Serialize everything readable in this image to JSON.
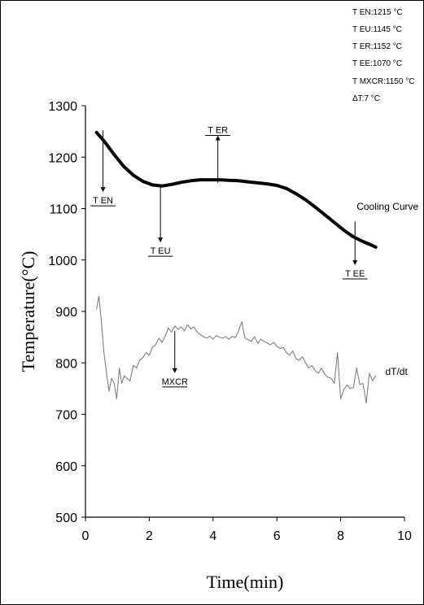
{
  "chart_data": {
    "type": "line",
    "xlabel": "Time(min)",
    "ylabel": "Temperature(°C)",
    "xlim": [
      0,
      10
    ],
    "ylim": [
      500,
      1300
    ],
    "x_ticks": [
      0,
      2,
      4,
      6,
      8,
      10
    ],
    "y_ticks": [
      500,
      600,
      700,
      800,
      900,
      1000,
      1100,
      1200,
      1300
    ],
    "grid": false,
    "series": [
      {
        "name": "Cooling Curve",
        "color": "#000000",
        "x": [
          0.35,
          0.6,
          0.9,
          1.2,
          1.5,
          1.8,
          2.1,
          2.4,
          2.7,
          3.0,
          3.3,
          3.6,
          3.9,
          4.2,
          4.5,
          4.8,
          5.1,
          5.4,
          5.7,
          6.0,
          6.3,
          6.6,
          6.9,
          7.2,
          7.5,
          7.8,
          8.1,
          8.4,
          8.7,
          9.0,
          9.1
        ],
        "y": [
          1248,
          1230,
          1205,
          1182,
          1165,
          1153,
          1146,
          1144,
          1147,
          1151,
          1154,
          1156,
          1156,
          1156,
          1155,
          1154,
          1152,
          1150,
          1148,
          1145,
          1139,
          1129,
          1117,
          1103,
          1088,
          1073,
          1058,
          1045,
          1036,
          1028,
          1025
        ]
      },
      {
        "name": "dT/dt",
        "color": "#808080",
        "x": [
          0.35,
          0.42,
          0.5,
          0.58,
          0.66,
          0.74,
          0.82,
          0.9,
          0.98,
          1.06,
          1.14,
          1.22,
          1.3,
          1.4,
          1.5,
          1.6,
          1.7,
          1.8,
          1.9,
          2.0,
          2.1,
          2.2,
          2.3,
          2.4,
          2.5,
          2.6,
          2.7,
          2.8,
          2.9,
          3.0,
          3.1,
          3.2,
          3.3,
          3.4,
          3.5,
          3.6,
          3.7,
          3.8,
          3.9,
          4.0,
          4.1,
          4.2,
          4.3,
          4.4,
          4.5,
          4.6,
          4.7,
          4.8,
          4.9,
          5.0,
          5.1,
          5.2,
          5.3,
          5.4,
          5.5,
          5.6,
          5.7,
          5.8,
          5.9,
          6.0,
          6.1,
          6.2,
          6.3,
          6.4,
          6.5,
          6.6,
          6.7,
          6.8,
          6.9,
          7.0,
          7.1,
          7.2,
          7.3,
          7.4,
          7.5,
          7.6,
          7.7,
          7.8,
          7.9,
          8.0,
          8.1,
          8.2,
          8.3,
          8.4,
          8.5,
          8.6,
          8.7,
          8.8,
          8.9,
          9.0,
          9.1
        ],
        "y": [
          905,
          930,
          880,
          820,
          780,
          745,
          770,
          760,
          730,
          790,
          760,
          775,
          770,
          765,
          795,
          790,
          805,
          810,
          820,
          815,
          830,
          835,
          848,
          840,
          852,
          868,
          860,
          872,
          865,
          870,
          862,
          874,
          866,
          870,
          860,
          855,
          851,
          848,
          852,
          846,
          853,
          850,
          848,
          851,
          846,
          852,
          849,
          862,
          880,
          848,
          845,
          842,
          851,
          838,
          846,
          842,
          839,
          835,
          840,
          832,
          828,
          830,
          820,
          815,
          823,
          808,
          805,
          812,
          800,
          790,
          795,
          785,
          780,
          790,
          778,
          772,
          770,
          760,
          820,
          730,
          748,
          757,
          750,
          752,
          790,
          758,
          760,
          722,
          780,
          765,
          775
        ]
      }
    ],
    "annotations": [
      {
        "text": "T EN",
        "x": 0.55,
        "y": 1252,
        "label_y": 1110
      },
      {
        "text": "T EU",
        "x": 2.35,
        "y": 1145,
        "label_y": 1012
      },
      {
        "text": "T ER",
        "x": 4.15,
        "y": 1150,
        "label_y": 1247
      },
      {
        "text": "T EE",
        "x": 8.45,
        "y": 1075,
        "label_y": 968
      },
      {
        "text": "MXCR",
        "x": 2.8,
        "y": 862,
        "label_y": 758
      }
    ],
    "series_labels": [
      {
        "text": "Cooling Curve",
        "x": 8.5,
        "y": 1098
      },
      {
        "text": "dT/dt",
        "x": 9.4,
        "y": 777
      }
    ],
    "legend_position": "top-right",
    "legend": [
      "T EN:1215 °C",
      "T EU:1145 °C",
      "T ER:1152 °C",
      "T EE:1070 °C",
      "T MXCR:1150 °C",
      "ΔT:7 °C"
    ]
  }
}
